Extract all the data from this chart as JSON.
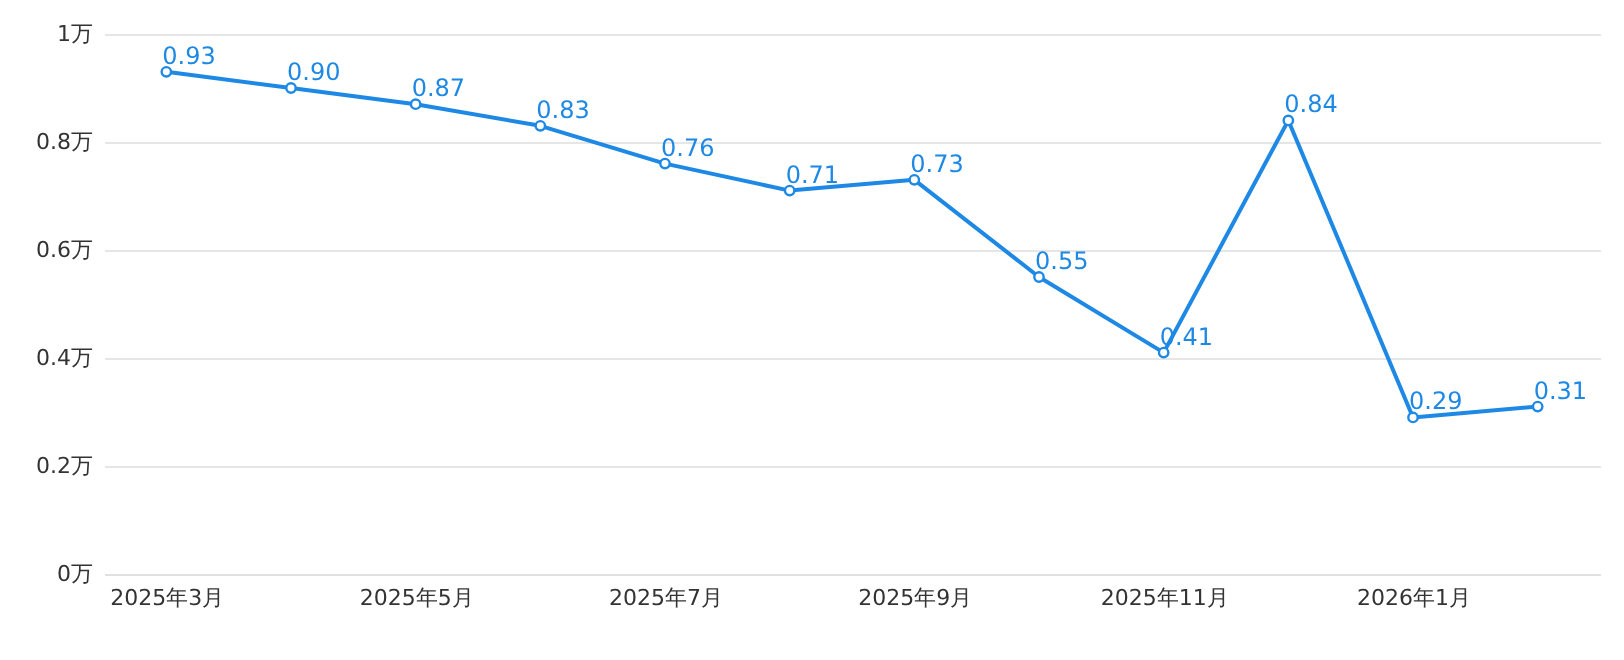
{
  "chart_data": {
    "type": "line",
    "categories": [
      "2025年3月",
      null,
      "2025年5月",
      null,
      "2025年7月",
      null,
      "2025年9月",
      null,
      "2025年11月",
      null,
      "2026年1月",
      null
    ],
    "series": [
      {
        "color": "#1e88e5",
        "values": [
          0.93,
          0.9,
          0.87,
          0.83,
          0.76,
          0.71,
          0.73,
          0.55,
          0.41,
          0.84,
          0.29,
          0.31
        ],
        "value_labels": [
          "0.93",
          "0.90",
          "0.87",
          "0.83",
          "0.76",
          "0.71",
          "0.73",
          "0.55",
          "0.41",
          "0.84",
          "0.29",
          "0.31"
        ]
      }
    ],
    "ylim": [
      0,
      1
    ],
    "yticks": [
      {
        "value": 0,
        "label": "0万"
      },
      {
        "value": 0.2,
        "label": "0.2万"
      },
      {
        "value": 0.4,
        "label": "0.4万"
      },
      {
        "value": 0.6,
        "label": "0.6万"
      },
      {
        "value": 0.8,
        "label": "0.8万"
      },
      {
        "value": 1,
        "label": "1万"
      }
    ],
    "grid": "y",
    "marker": "circle",
    "line_style": "solid"
  }
}
